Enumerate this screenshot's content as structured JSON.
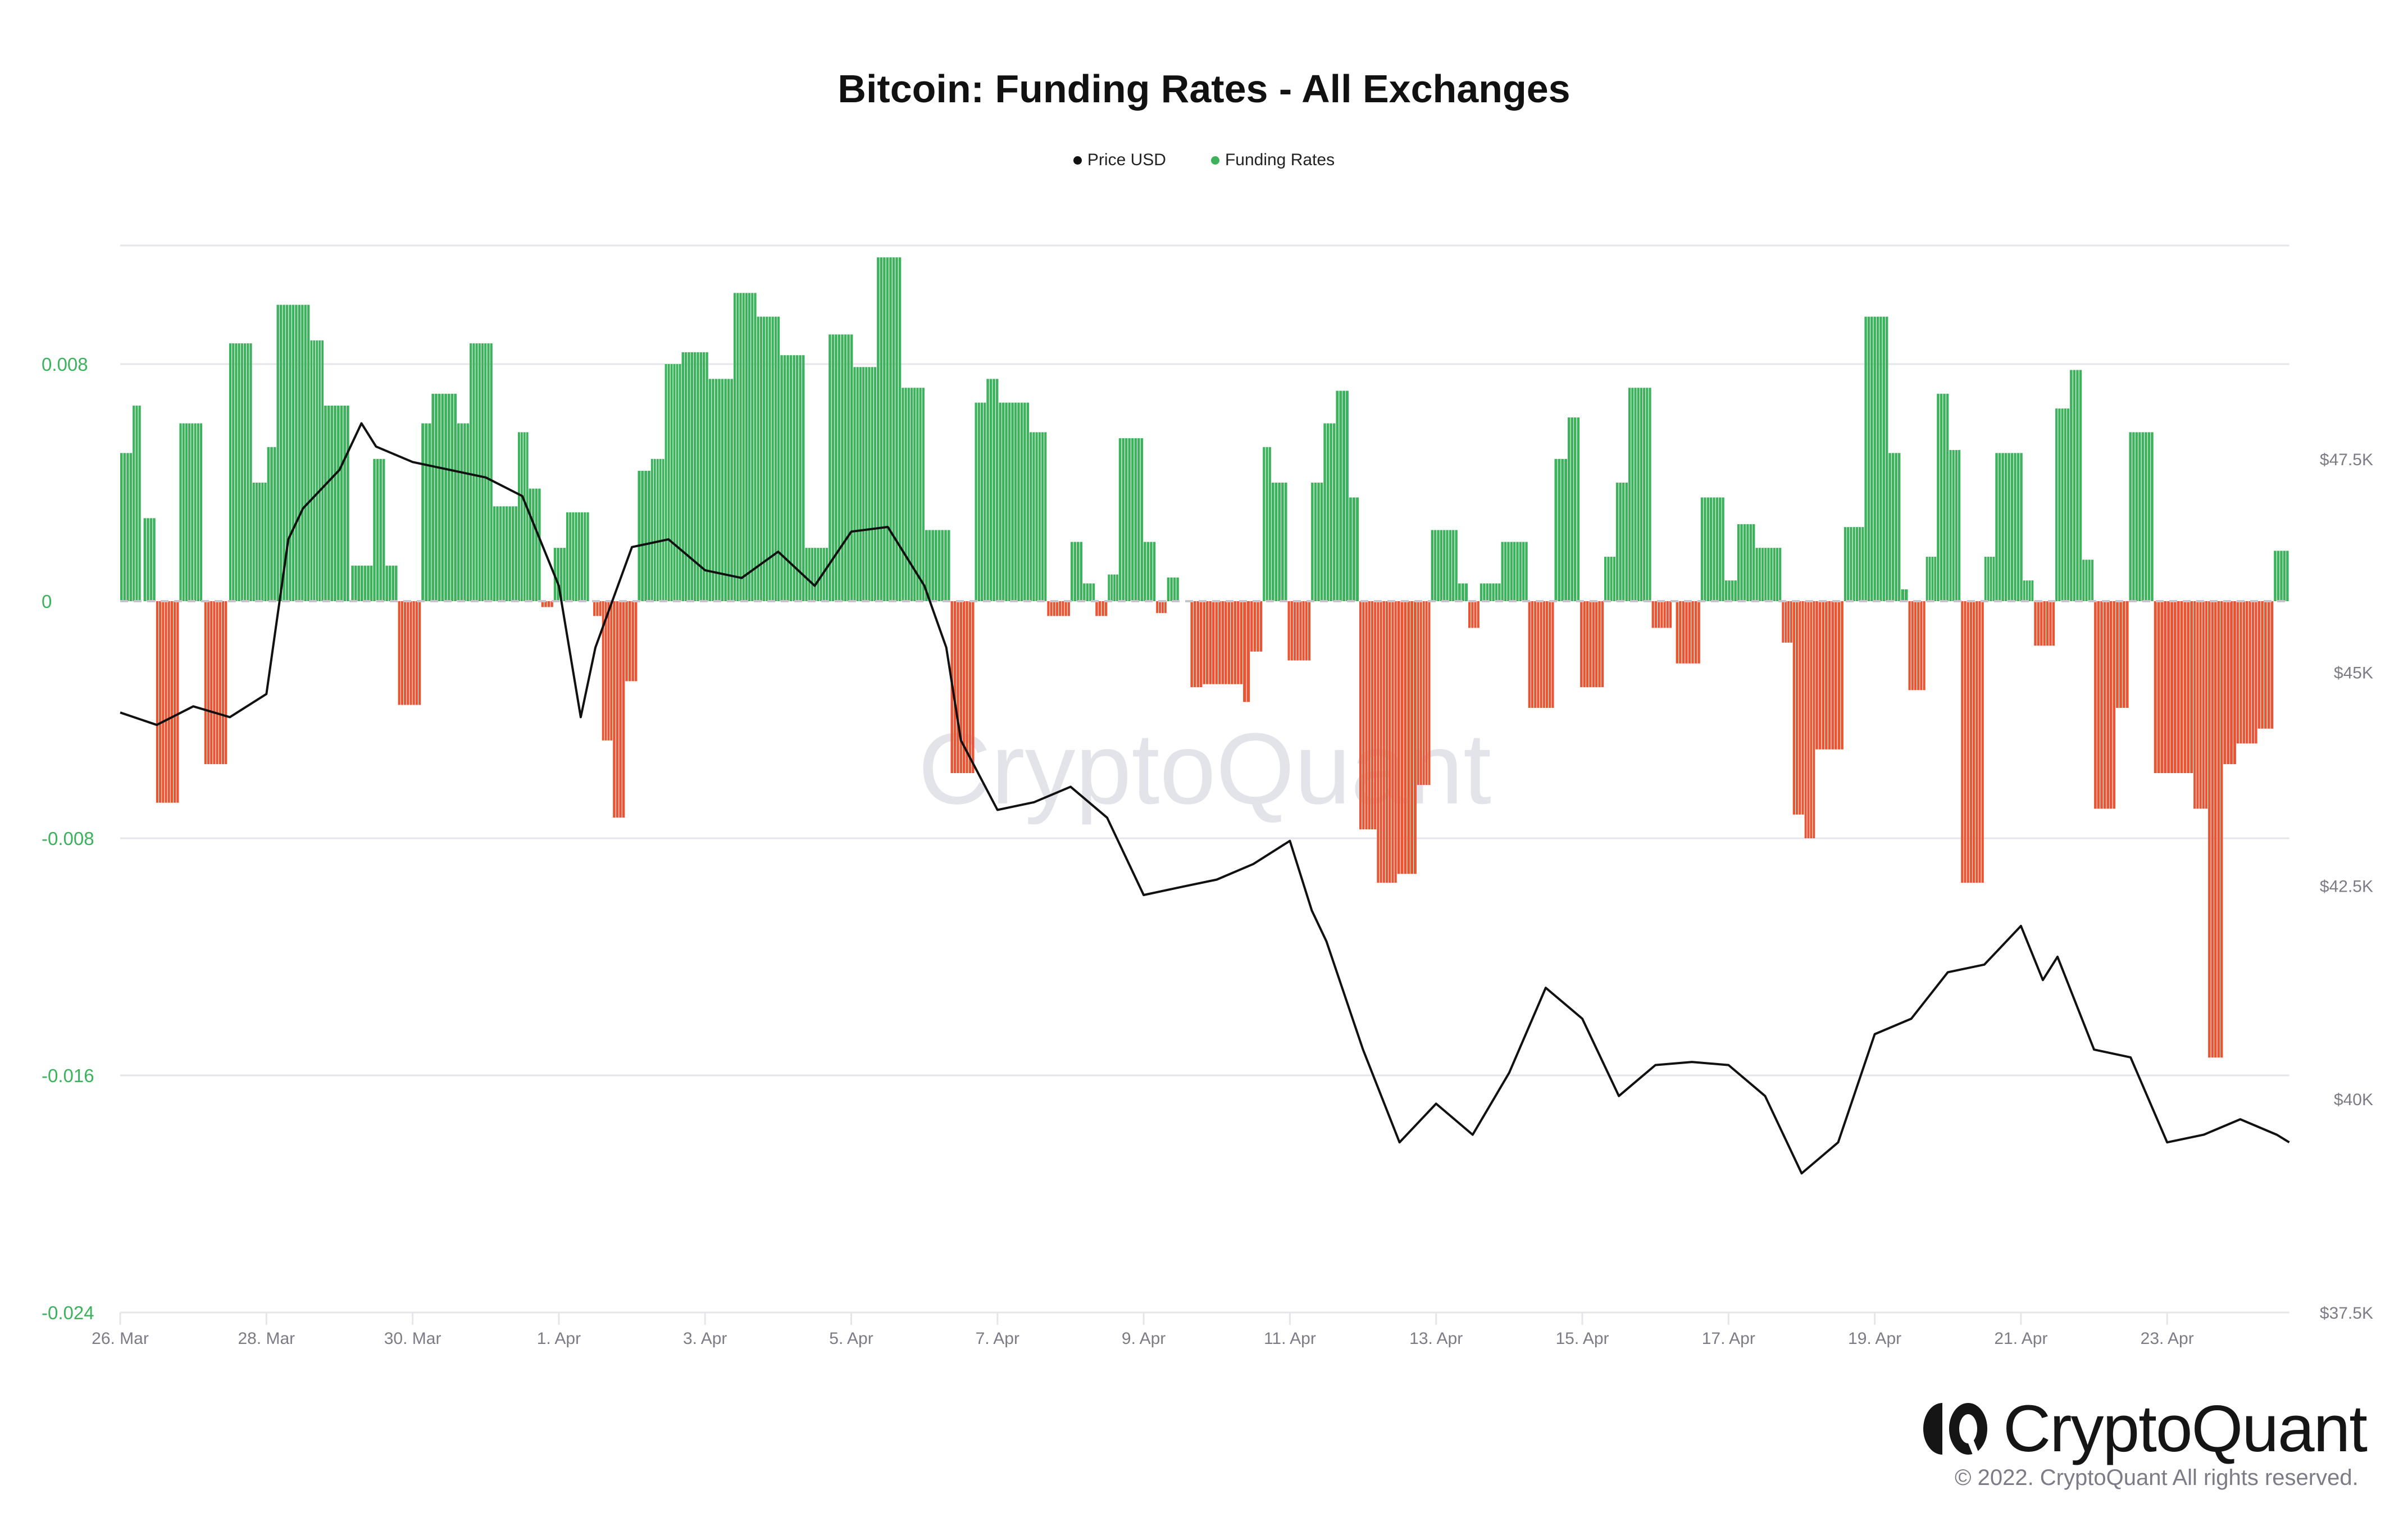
{
  "chart_data": {
    "type": "bar",
    "title": "Bitcoin: Funding Rates - All Exchanges",
    "legend": {
      "placement": "top-center",
      "items": [
        {
          "name": "Price USD",
          "color": "#111111"
        },
        {
          "name": "Funding Rates",
          "color": "#3bb25b"
        }
      ]
    },
    "colors": {
      "positive": "#3bb25b",
      "negative": "#e95533",
      "price_line": "#111111",
      "grid": "#e6e6ea",
      "left_axis_text": "#3bb25b",
      "right_axis_text": "#7c7c86"
    },
    "x_axis": {
      "unit": "days since 26 Mar",
      "range": [
        0,
        29.67
      ],
      "ticks": [
        {
          "day": 0,
          "label": "26. Mar"
        },
        {
          "day": 2,
          "label": "28. Mar"
        },
        {
          "day": 4,
          "label": "30. Mar"
        },
        {
          "day": 6,
          "label": "1. Apr"
        },
        {
          "day": 8,
          "label": "3. Apr"
        },
        {
          "day": 10,
          "label": "5. Apr"
        },
        {
          "day": 12,
          "label": "7. Apr"
        },
        {
          "day": 14,
          "label": "9. Apr"
        },
        {
          "day": 16,
          "label": "11. Apr"
        },
        {
          "day": 18,
          "label": "13. Apr"
        },
        {
          "day": 20,
          "label": "15. Apr"
        },
        {
          "day": 22,
          "label": "17. Apr"
        },
        {
          "day": 24,
          "label": "19. Apr"
        },
        {
          "day": 26,
          "label": "21. Apr"
        },
        {
          "day": 28,
          "label": "23. Apr"
        }
      ]
    },
    "y_axis_left": {
      "label": "Funding Rates",
      "range": [
        -0.024,
        0.012
      ],
      "ticks": [
        {
          "value": 0.008,
          "label": "0.008"
        },
        {
          "value": 0,
          "label": "0"
        },
        {
          "value": -0.008,
          "label": "-0.008"
        },
        {
          "value": -0.016,
          "label": "-0.016"
        },
        {
          "value": -0.024,
          "label": "-0.024"
        }
      ]
    },
    "y_axis_right": {
      "label": "Price USD",
      "range": [
        37500,
        50000
      ],
      "ticks": [
        {
          "value": 47500,
          "label": "$47.5K"
        },
        {
          "value": 45000,
          "label": "$45K"
        },
        {
          "value": 42500,
          "label": "$42.5K"
        },
        {
          "value": 40000,
          "label": "$40K"
        },
        {
          "value": 37500,
          "label": "$37.5K"
        }
      ]
    },
    "grid": true,
    "series": [
      {
        "name": "Funding Rates",
        "kind": "bar",
        "axis": "left",
        "segments_note": "[start_day, end_day, value]",
        "segments": [
          [
            0.0,
            0.17,
            0.005
          ],
          [
            0.17,
            0.29,
            0.0066
          ],
          [
            0.32,
            0.49,
            0.0028
          ],
          [
            0.49,
            0.81,
            -0.0068
          ],
          [
            0.81,
            1.13,
            0.006
          ],
          [
            1.15,
            1.47,
            -0.0055
          ],
          [
            1.49,
            1.81,
            0.0087
          ],
          [
            1.81,
            2.01,
            0.004
          ],
          [
            2.01,
            2.14,
            0.0052
          ],
          [
            2.14,
            2.6,
            0.01
          ],
          [
            2.6,
            2.79,
            0.0088
          ],
          [
            2.79,
            3.14,
            0.0066
          ],
          [
            3.16,
            3.46,
            0.0012
          ],
          [
            3.46,
            3.63,
            0.0048
          ],
          [
            3.63,
            3.8,
            0.0012
          ],
          [
            3.8,
            4.12,
            -0.0035
          ],
          [
            4.12,
            4.26,
            0.006
          ],
          [
            4.26,
            4.61,
            0.007
          ],
          [
            4.61,
            4.78,
            0.006
          ],
          [
            4.78,
            5.1,
            0.0087
          ],
          [
            5.1,
            5.44,
            0.0032
          ],
          [
            5.44,
            5.59,
            0.0057
          ],
          [
            5.59,
            5.76,
            0.0038
          ],
          [
            5.76,
            5.93,
            -0.0002
          ],
          [
            5.93,
            6.1,
            0.0018
          ],
          [
            6.1,
            6.42,
            0.003
          ],
          [
            6.47,
            6.59,
            -0.0005
          ],
          [
            6.59,
            6.74,
            -0.0047
          ],
          [
            6.74,
            6.91,
            -0.0073
          ],
          [
            6.91,
            7.08,
            -0.0027
          ],
          [
            7.08,
            7.26,
            0.0044
          ],
          [
            7.26,
            7.45,
            0.0048
          ],
          [
            7.45,
            7.68,
            0.008
          ],
          [
            7.68,
            8.05,
            0.0084
          ],
          [
            8.05,
            8.39,
            0.0075
          ],
          [
            8.39,
            8.71,
            0.0104
          ],
          [
            8.71,
            9.03,
            0.0096
          ],
          [
            9.03,
            9.37,
            0.0083
          ],
          [
            9.37,
            9.69,
            0.0018
          ],
          [
            9.69,
            10.03,
            0.009
          ],
          [
            10.03,
            10.35,
            0.0079
          ],
          [
            10.35,
            10.69,
            0.0116
          ],
          [
            10.69,
            11.01,
            0.0072
          ],
          [
            11.01,
            11.36,
            0.0024
          ],
          [
            11.36,
            11.69,
            -0.0058
          ],
          [
            11.69,
            11.85,
            0.0067
          ],
          [
            11.85,
            12.02,
            0.0075
          ],
          [
            12.02,
            12.44,
            0.0067
          ],
          [
            12.44,
            12.68,
            0.0057
          ],
          [
            12.68,
            13.0,
            -0.0005
          ],
          [
            13.0,
            13.17,
            0.002
          ],
          [
            13.17,
            13.34,
            0.0006
          ],
          [
            13.34,
            13.51,
            -0.0005
          ],
          [
            13.51,
            13.66,
            0.0009
          ],
          [
            13.66,
            14.0,
            0.0055
          ],
          [
            14.0,
            14.17,
            0.002
          ],
          [
            14.17,
            14.32,
            -0.0004
          ],
          [
            14.32,
            14.49,
            0.0008
          ],
          [
            14.49,
            14.64,
            0.0
          ],
          [
            14.64,
            14.81,
            -0.0029
          ],
          [
            14.81,
            15.36,
            -0.0028
          ],
          [
            15.36,
            15.46,
            -0.0034
          ],
          [
            15.46,
            15.63,
            -0.0017
          ],
          [
            15.63,
            15.75,
            0.0052
          ],
          [
            15.75,
            15.97,
            0.004
          ],
          [
            15.97,
            16.29,
            -0.002
          ],
          [
            16.29,
            16.46,
            0.004
          ],
          [
            16.46,
            16.63,
            0.006
          ],
          [
            16.63,
            16.81,
            0.0071
          ],
          [
            16.81,
            16.95,
            0.0035
          ],
          [
            16.95,
            17.19,
            -0.0077
          ],
          [
            17.19,
            17.47,
            -0.0095
          ],
          [
            17.47,
            17.74,
            -0.0092
          ],
          [
            17.74,
            17.93,
            -0.0062
          ],
          [
            17.93,
            18.3,
            0.0024
          ],
          [
            18.3,
            18.44,
            0.0006
          ],
          [
            18.44,
            18.6,
            -0.0009
          ],
          [
            18.6,
            18.89,
            0.0006
          ],
          [
            18.89,
            19.26,
            0.002
          ],
          [
            19.26,
            19.62,
            -0.0036
          ],
          [
            19.62,
            19.8,
            0.0048
          ],
          [
            19.8,
            19.97,
            0.0062
          ],
          [
            19.97,
            20.3,
            -0.0029
          ],
          [
            20.3,
            20.46,
            0.0015
          ],
          [
            20.46,
            20.63,
            0.004
          ],
          [
            20.63,
            20.95,
            0.0072
          ],
          [
            20.95,
            21.23,
            -0.0009
          ],
          [
            21.28,
            21.62,
            -0.0021
          ],
          [
            21.62,
            21.95,
            0.0035
          ],
          [
            21.95,
            22.12,
            0.0007
          ],
          [
            22.12,
            22.37,
            0.0026
          ],
          [
            22.37,
            22.73,
            0.0018
          ],
          [
            22.73,
            22.88,
            -0.0014
          ],
          [
            22.88,
            23.04,
            -0.0072
          ],
          [
            23.04,
            23.19,
            -0.008
          ],
          [
            23.19,
            23.58,
            -0.005
          ],
          [
            23.58,
            23.86,
            0.0025
          ],
          [
            23.86,
            24.19,
            0.0096
          ],
          [
            24.19,
            24.36,
            0.005
          ],
          [
            24.36,
            24.46,
            0.0004
          ],
          [
            24.46,
            24.7,
            -0.003
          ],
          [
            24.7,
            24.85,
            0.0015
          ],
          [
            24.85,
            25.02,
            0.007
          ],
          [
            25.02,
            25.18,
            0.0051
          ],
          [
            25.18,
            25.5,
            -0.0095
          ],
          [
            25.5,
            25.65,
            0.0015
          ],
          [
            25.65,
            26.03,
            0.005
          ],
          [
            26.03,
            26.18,
            0.0007
          ],
          [
            26.18,
            26.47,
            -0.0015
          ],
          [
            26.47,
            26.67,
            0.0065
          ],
          [
            26.67,
            26.84,
            0.0078
          ],
          [
            26.84,
            27.0,
            0.0014
          ],
          [
            27.0,
            27.3,
            -0.007
          ],
          [
            27.3,
            27.48,
            -0.0036
          ],
          [
            27.48,
            27.82,
            0.0057
          ],
          [
            27.82,
            28.09,
            -0.0058
          ],
          [
            28.09,
            28.36,
            -0.0058
          ],
          [
            28.36,
            28.56,
            -0.007
          ],
          [
            28.56,
            28.77,
            -0.0154
          ],
          [
            28.77,
            28.95,
            -0.0055
          ],
          [
            28.95,
            29.24,
            -0.0048
          ],
          [
            29.24,
            29.46,
            -0.0043
          ],
          [
            29.46,
            29.67,
            0.0017
          ]
        ]
      },
      {
        "name": "Price USD",
        "kind": "line",
        "axis": "right",
        "points_note": "[day, price]",
        "points": [
          [
            0,
            44529
          ],
          [
            0.5,
            44384
          ],
          [
            1,
            44601
          ],
          [
            1.5,
            44475
          ],
          [
            2,
            44746
          ],
          [
            2.3,
            46558
          ],
          [
            2.5,
            46920
          ],
          [
            3,
            47373
          ],
          [
            3.3,
            47917
          ],
          [
            3.5,
            47645
          ],
          [
            4,
            47464
          ],
          [
            4.5,
            47373
          ],
          [
            5,
            47283
          ],
          [
            5.5,
            47065
          ],
          [
            6,
            46014
          ],
          [
            6.3,
            44475
          ],
          [
            6.5,
            45290
          ],
          [
            7,
            46467
          ],
          [
            7.5,
            46558
          ],
          [
            8,
            46196
          ],
          [
            8.5,
            46105
          ],
          [
            9,
            46413
          ],
          [
            9.5,
            46014
          ],
          [
            10,
            46648
          ],
          [
            10.5,
            46703
          ],
          [
            11,
            46014
          ],
          [
            11.3,
            45290
          ],
          [
            11.5,
            44203
          ],
          [
            12,
            43388
          ],
          [
            12.5,
            43478
          ],
          [
            13,
            43659
          ],
          [
            13.5,
            43297
          ],
          [
            14,
            42391
          ],
          [
            14.5,
            42482
          ],
          [
            15,
            42572
          ],
          [
            15.5,
            42754
          ],
          [
            16,
            43025
          ],
          [
            16.3,
            42210
          ],
          [
            16.5,
            41848
          ],
          [
            17,
            40580
          ],
          [
            17.5,
            39493
          ],
          [
            18,
            39946
          ],
          [
            18.5,
            39583
          ],
          [
            19,
            40308
          ],
          [
            19.5,
            41304
          ],
          [
            20,
            40942
          ],
          [
            20.5,
            40036
          ],
          [
            21,
            40399
          ],
          [
            21.5,
            40435
          ],
          [
            22,
            40399
          ],
          [
            22.5,
            40036
          ],
          [
            23,
            39130
          ],
          [
            23.5,
            39493
          ],
          [
            24,
            40761
          ],
          [
            24.5,
            40942
          ],
          [
            25,
            41486
          ],
          [
            25.5,
            41576
          ],
          [
            26,
            42029
          ],
          [
            26.3,
            41395
          ],
          [
            26.5,
            41667
          ],
          [
            27,
            40580
          ],
          [
            27.5,
            40489
          ],
          [
            28,
            39493
          ],
          [
            28.5,
            39583
          ],
          [
            29,
            39764
          ],
          [
            29.5,
            39583
          ],
          [
            29.67,
            39493
          ]
        ]
      }
    ]
  },
  "watermark": "CryptoQuant",
  "branding": {
    "name": "CryptoQuant",
    "copyright": "© 2022. CryptoQuant All rights reserved."
  }
}
